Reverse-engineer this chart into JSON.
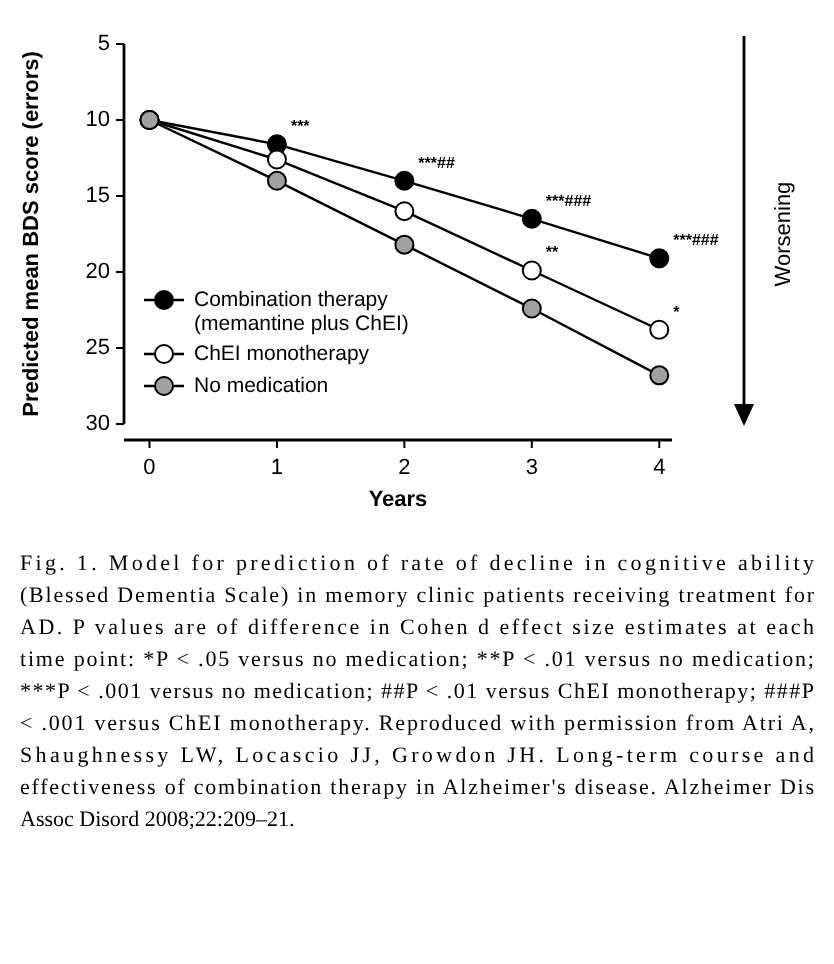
{
  "chart_data": {
    "type": "line",
    "xlabel": "Years",
    "ylabel": "Predicted mean BDS score (errors)",
    "x": [
      0,
      1,
      2,
      3,
      4
    ],
    "xlim": [
      -0.2,
      4.1
    ],
    "xticks": [
      0,
      1,
      2,
      3,
      4
    ],
    "ylim": [
      30,
      5
    ],
    "yticks": [
      30,
      25,
      20,
      15,
      10,
      5
    ],
    "series": [
      {
        "name": "Combination therapy\n(memantine plus ChEI)",
        "color": "#000000",
        "values": [
          10,
          11.6,
          14,
          16.5,
          19.1
        ]
      },
      {
        "name": "ChEI monotherapy",
        "color": "#ffffff",
        "values": [
          10,
          12.6,
          16,
          19.9,
          23.8
        ]
      },
      {
        "name": "No medication",
        "color": "#a0a0a0",
        "values": [
          10,
          14,
          18.2,
          22.4,
          26.8
        ]
      }
    ],
    "marker": "circle",
    "line_style": "solid",
    "legend": "bottom left",
    "grid": false,
    "annotations": [
      {
        "text": "***",
        "x": 1,
        "y": 11.6
      },
      {
        "text": "***##",
        "x": 2,
        "y": 14
      },
      {
        "text": "***###",
        "x": 3,
        "y": 16.5
      },
      {
        "text": "**",
        "x": 3,
        "y": 19.9
      },
      {
        "text": "***###",
        "x": 4,
        "y": 19.1
      },
      {
        "text": "*",
        "x": 4,
        "y": 23.8
      },
      "Worsening",
      "Fig. 1. Model for prediction of rate of decline in cognitive ability (Blessed Dementia Scale) in memory clinic patients receiving treatment for AD. P values are of difference in Cohen d effect size estimates at each time point: *P < .05 versus no medication; **P < .01 versus no medication; ***P < .001 versus no medication; ##P < .01 versus ChEI monotherapy; ###P < .001 versus ChEI monotherapy. Reproduced with permission from Atri A, Shaughnessy LW, Locascio JJ, Growdon JH. Long-term course and effectiveness of combination therapy in Alzheimer's disease. Alzheimer Dis Assoc Disord 2008;22:209–21."
    ]
  }
}
